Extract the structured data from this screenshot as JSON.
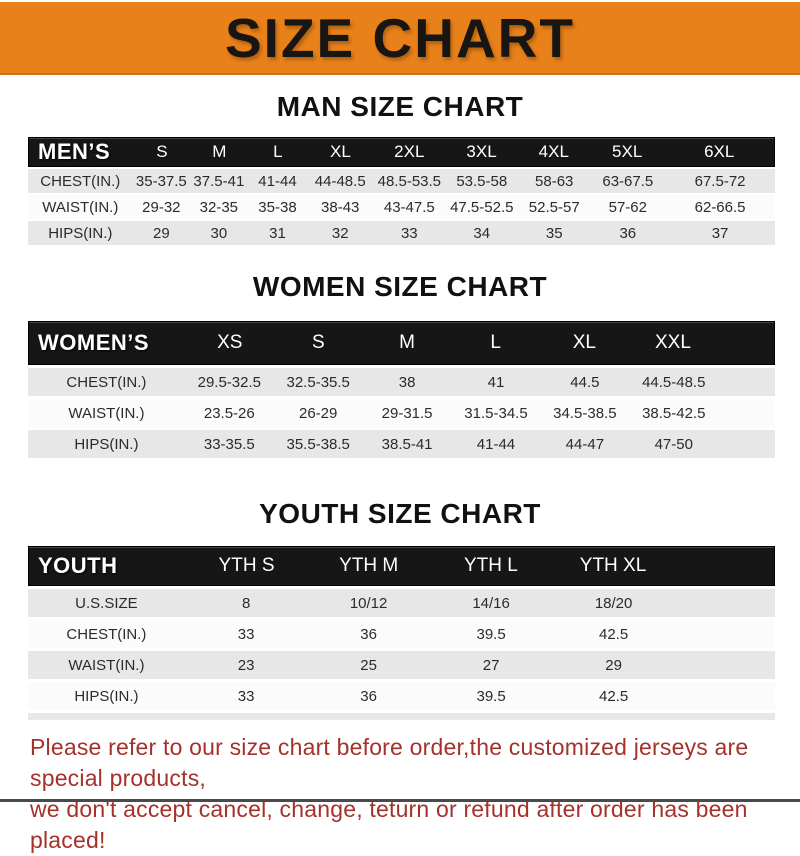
{
  "banner": {
    "title": "SIZE CHART"
  },
  "colors": {
    "banner_orange": "#E8811A",
    "table_header_black": "#161616",
    "row_gray": "#E7E7E7",
    "row_white": "#FBFBFB",
    "footer_red": "#A5312B"
  },
  "sections": [
    {
      "id": "men",
      "heading": "MAN SIZE CHART",
      "table": {
        "label": "MEN’S",
        "columns": [
          "S",
          "M",
          "L",
          "XL",
          "2XL",
          "3XL",
          "4XL",
          "5XL",
          "6XL"
        ],
        "rows": [
          {
            "label": "CHEST(IN.)",
            "values": [
              "35-37.5",
              "37.5-41",
              "41-44",
              "44-48.5",
              "48.5-53.5",
              "53.5-58",
              "58-63",
              "63-67.5",
              "67.5-72"
            ]
          },
          {
            "label": "WAIST(IN.)",
            "values": [
              "29-32",
              "32-35",
              "35-38",
              "38-43",
              "43-47.5",
              "47.5-52.5",
              "52.5-57",
              "57-62",
              "62-66.5"
            ]
          },
          {
            "label": "HIPS(IN.)",
            "values": [
              "29",
              "30",
              "31",
              "32",
              "33",
              "34",
              "35",
              "36",
              "37"
            ]
          }
        ]
      }
    },
    {
      "id": "women",
      "heading": "WOMEN SIZE CHART",
      "table": {
        "label": "WOMEN’S",
        "columns": [
          "XS",
          "S",
          "M",
          "L",
          "XL",
          "XXL"
        ],
        "rows": [
          {
            "label": "CHEST(IN.)",
            "values": [
              "29.5-32.5",
              "32.5-35.5",
              "38",
              "41",
              "44.5",
              "44.5-48.5"
            ]
          },
          {
            "label": "WAIST(IN.)",
            "values": [
              "23.5-26",
              "26-29",
              "29-31.5",
              "31.5-34.5",
              "34.5-38.5",
              "38.5-42.5"
            ]
          },
          {
            "label": "HIPS(IN.)",
            "values": [
              "33-35.5",
              "35.5-38.5",
              "38.5-41",
              "41-44",
              "44-47",
              "47-50"
            ]
          }
        ]
      }
    },
    {
      "id": "youth",
      "heading": "YOUTH SIZE CHART",
      "table": {
        "label": "YOUTH",
        "columns": [
          "YTH S",
          "YTH M",
          "YTH L",
          "YTH XL"
        ],
        "rows": [
          {
            "label": "U.S.SIZE",
            "values": [
              "8",
              "10/12",
              "14/16",
              "18/20"
            ]
          },
          {
            "label": "CHEST(IN.)",
            "values": [
              "33",
              "36",
              "39.5",
              "42.5"
            ]
          },
          {
            "label": "WAIST(IN.)",
            "values": [
              "23",
              "25",
              "27",
              "29"
            ]
          },
          {
            "label": "HIPS(IN.)",
            "values": [
              "33",
              "36",
              "39.5",
              "42.5"
            ]
          }
        ]
      }
    }
  ],
  "footer": {
    "line1": "Please refer to our size chart before order,the customized jerseys are special products,",
    "line2": "we don't accept cancel, change, teturn or refund after order has been placed!"
  }
}
